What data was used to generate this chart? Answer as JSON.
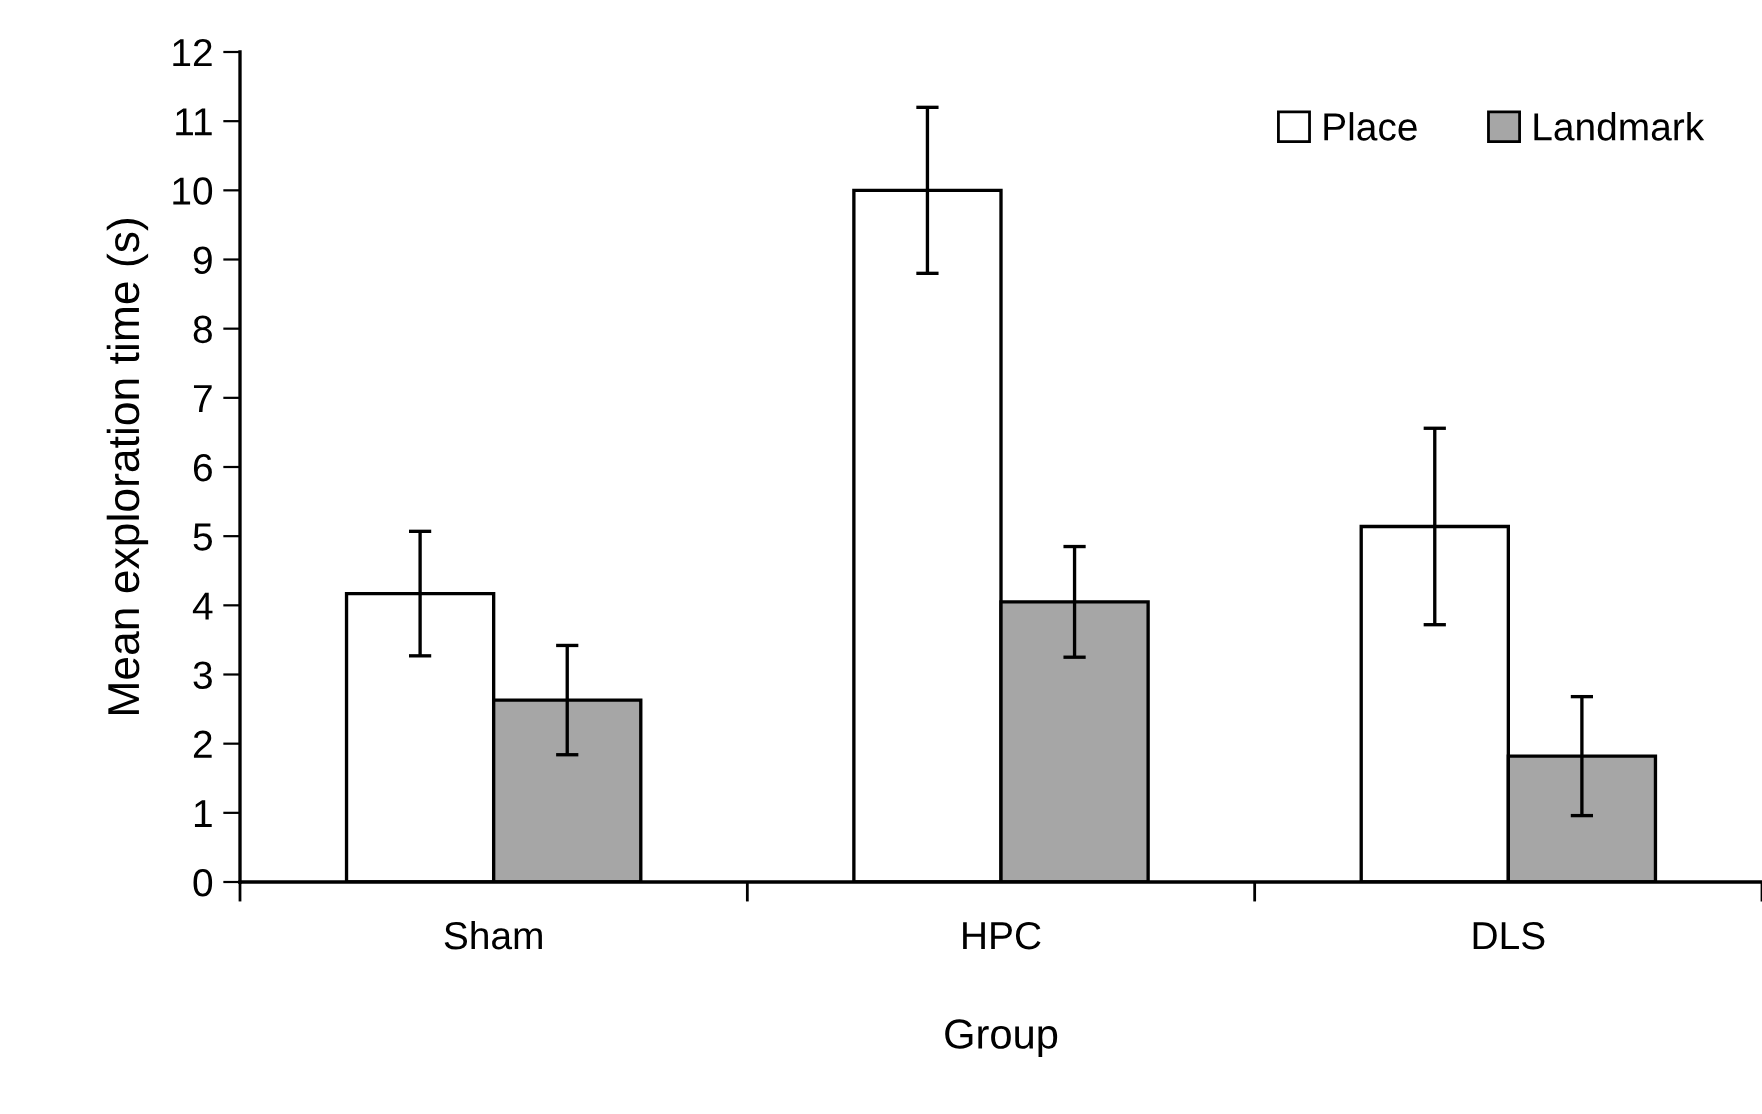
{
  "chart_data": {
    "type": "bar",
    "xlabel": "Group",
    "ylabel": "Mean exploration time (s)",
    "categories": [
      "Sham",
      "HPC",
      "DLS"
    ],
    "series": [
      {
        "name": "Place",
        "color": "#ffffff",
        "values": [
          4.17,
          10.0,
          5.14
        ],
        "errors": [
          0.9,
          1.2,
          1.42
        ]
      },
      {
        "name": "Landmark",
        "color": "#a6a6a6",
        "values": [
          2.63,
          4.05,
          1.82
        ],
        "errors": [
          0.79,
          0.8,
          0.86
        ]
      }
    ],
    "ylim": [
      0,
      12
    ],
    "yticks": [
      0,
      1,
      2,
      3,
      4,
      5,
      6,
      7,
      8,
      9,
      10,
      11,
      12
    ],
    "grid": false,
    "legend": "top right"
  }
}
